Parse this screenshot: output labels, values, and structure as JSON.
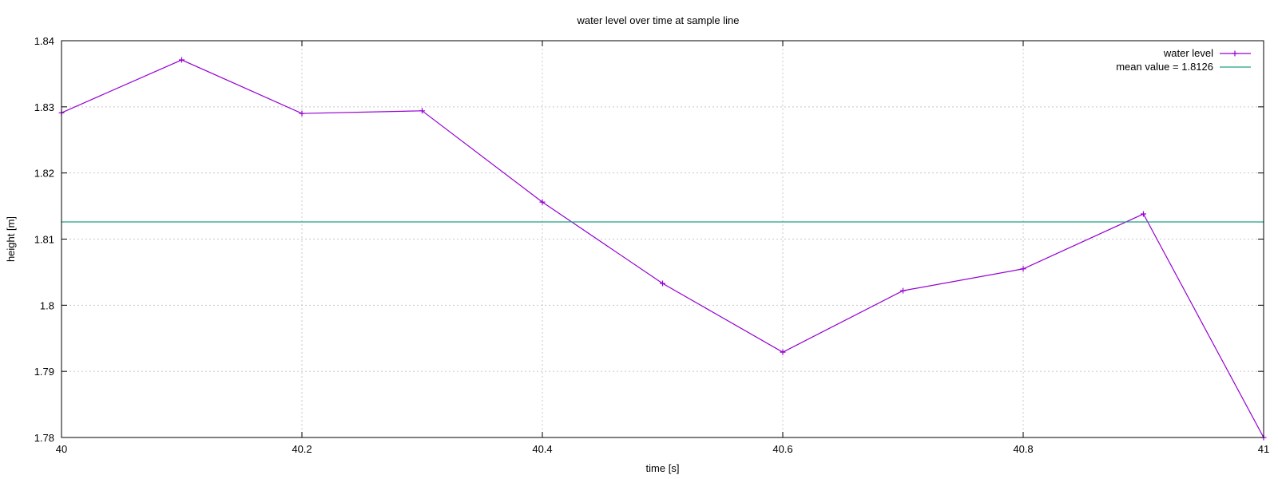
{
  "chart_data": {
    "type": "line",
    "title": "water level over time at sample line",
    "xlabel": "time [s]",
    "ylabel": "height [m]",
    "xlim": [
      40,
      41
    ],
    "ylim": [
      1.78,
      1.84
    ],
    "xticks": [
      40,
      40.2,
      40.4,
      40.6,
      40.8,
      41
    ],
    "xtick_labels": [
      "40",
      "40.2",
      "40.4",
      "40.6",
      "40.8",
      "41"
    ],
    "yticks": [
      1.78,
      1.79,
      1.8,
      1.81,
      1.82,
      1.83,
      1.84
    ],
    "ytick_labels": [
      "1.78",
      "1.79",
      "1.8",
      "1.81",
      "1.82",
      "1.83",
      "1.84"
    ],
    "grid": true,
    "legend_position": "top-right",
    "series": [
      {
        "name": "water level",
        "color": "#9400d3",
        "marker": "plus",
        "x": [
          40,
          40.1,
          40.2,
          40.3,
          40.4,
          40.5,
          40.6,
          40.7,
          40.8,
          40.9,
          41
        ],
        "y": [
          1.8291,
          1.8371,
          1.829,
          1.8294,
          1.8156,
          1.8033,
          1.7929,
          1.8022,
          1.8055,
          1.8138,
          1.78
        ]
      },
      {
        "name": "mean value = 1.8126",
        "color": "#20a080",
        "marker": "none",
        "x": [
          40,
          41
        ],
        "y": [
          1.8126,
          1.8126
        ]
      }
    ]
  }
}
